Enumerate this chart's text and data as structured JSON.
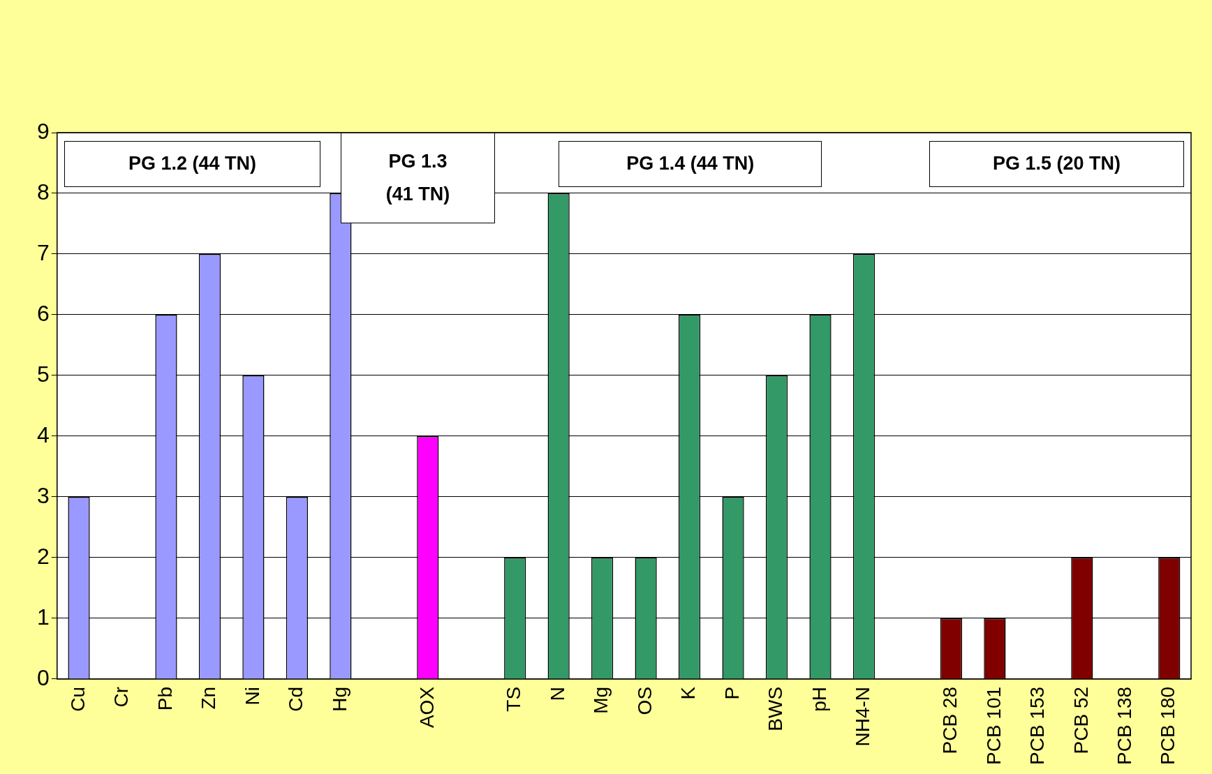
{
  "chart_data": {
    "type": "bar",
    "categories": [
      "Cu",
      "Cr",
      "Pb",
      "Zn",
      "Ni",
      "Cd",
      "Hg",
      null,
      "AOX",
      null,
      "TS",
      "N",
      "Mg",
      "OS",
      "K",
      "P",
      "BWS",
      "pH",
      "NH4-N",
      null,
      "PCB 28",
      "PCB 101",
      "PCB 153",
      "PCB 52",
      "PCB 138",
      "PCB 180"
    ],
    "values": [
      3,
      0,
      6,
      7,
      5,
      3,
      8,
      null,
      4,
      null,
      2,
      8,
      2,
      2,
      6,
      3,
      5,
      6,
      7,
      null,
      1,
      1,
      0,
      2,
      0,
      2
    ],
    "colors": [
      "#9999ff",
      "#9999ff",
      "#9999ff",
      "#9999ff",
      "#9999ff",
      "#9999ff",
      "#9999ff",
      null,
      "#ff00ff",
      null,
      "#339966",
      "#339966",
      "#339966",
      "#339966",
      "#339966",
      "#339966",
      "#339966",
      "#339966",
      "#339966",
      null,
      "#800000",
      "#800000",
      "#800000",
      "#800000",
      "#800000",
      "#800000"
    ],
    "ylim": [
      0,
      9
    ],
    "yticks": [
      0,
      1,
      2,
      3,
      4,
      5,
      6,
      7,
      8,
      9
    ],
    "grid": "y",
    "legend": false,
    "annotations": [
      "PG 1.2 (44 TN)",
      "PG 1.3 (41 TN)",
      "PG 1.4 (44 TN)",
      "PG 1.5 (20 TN)"
    ]
  }
}
